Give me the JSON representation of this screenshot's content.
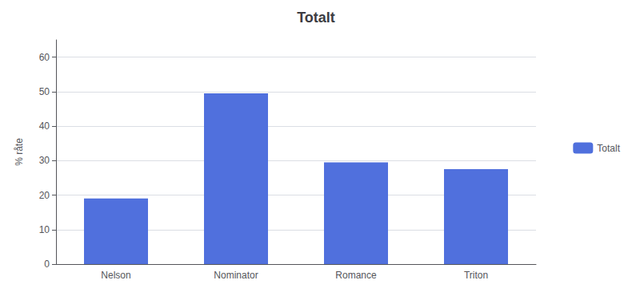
{
  "chart_data": {
    "type": "bar",
    "title": "Totalt",
    "ylabel": "% råte",
    "categories": [
      "Nelson",
      "Nominator",
      "Romance",
      "Triton"
    ],
    "series": [
      {
        "name": "Totalt",
        "values": [
          19.0,
          49.5,
          29.5,
          27.5
        ]
      }
    ],
    "ylim": [
      0,
      65
    ],
    "yticks": [
      0,
      10,
      20,
      30,
      40,
      50,
      60
    ],
    "grid": true,
    "legend": "right"
  }
}
